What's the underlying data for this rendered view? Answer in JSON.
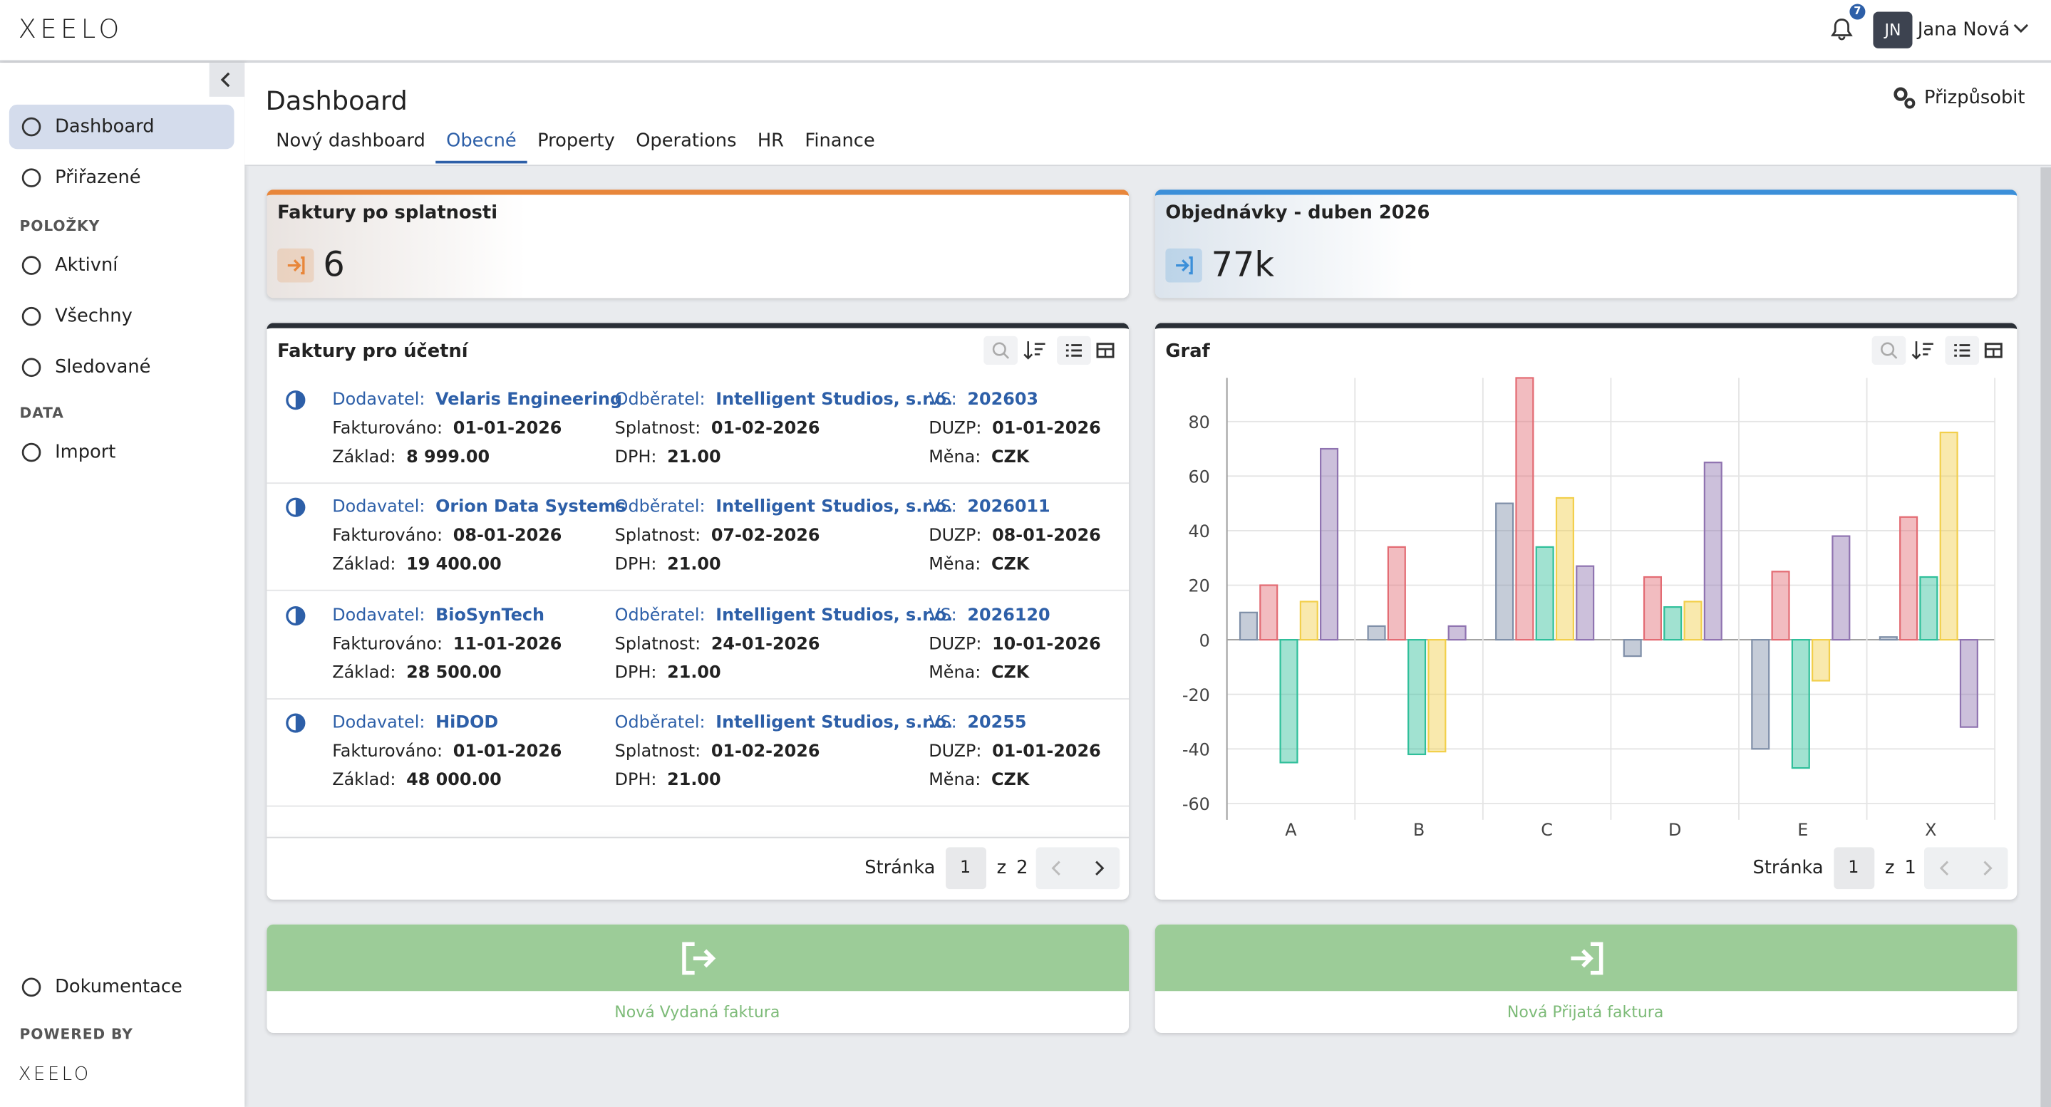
{
  "logo": "XEELO",
  "user": {
    "initials": "JN",
    "name": "Jana Nová",
    "notifications": 7
  },
  "sidebar": {
    "top": [
      "Dashboard",
      "Přiřazené"
    ],
    "active": 0,
    "sections": [
      {
        "title": "POLOŽKY",
        "items": [
          "Aktivní",
          "Všechny",
          "Sledované"
        ]
      },
      {
        "title": "DATA",
        "items": [
          "Import"
        ]
      }
    ],
    "docs": "Dokumentace",
    "powered_by": "POWERED BY"
  },
  "header": {
    "title": "Dashboard",
    "customize": "Přizpůsobit",
    "tabs": [
      "Nový dashboard",
      "Obecné",
      "Property",
      "Operations",
      "HR",
      "Finance"
    ],
    "active_tab": 1
  },
  "kpis": [
    {
      "title": "Faktury po splatnosti",
      "value": 6,
      "color": "#e8863a"
    },
    {
      "title": "Objednávky - duben 2026",
      "value": "77k",
      "color": "#3b8fd9"
    }
  ],
  "invoices": {
    "title": "Faktury pro účetní",
    "labels": {
      "supplier": "Dodavatel:",
      "invoiced": "Fakturováno:",
      "base": "Základ:",
      "customer": "Odběratel:",
      "due": "Splatnost:",
      "vat": "DPH:",
      "vs": "VS:",
      "duzp": "DUZP:",
      "currency": "Měna:"
    },
    "rows": [
      {
        "supplier": "Velaris Engineering",
        "invoiced": "01-01-2026",
        "base": "8 999.00",
        "customer": "Intelligent Studios, s.r.o.",
        "due": "01-02-2026",
        "vat": "21.00",
        "vs": "202603",
        "duzp": "01-01-2026",
        "currency": "CZK"
      },
      {
        "supplier": "Orion Data Systems",
        "invoiced": "08-01-2026",
        "base": "19 400.00",
        "customer": "Intelligent Studios, s.r.o.",
        "due": "07-02-2026",
        "vat": "21.00",
        "vs": "2026011",
        "duzp": "08-01-2026",
        "currency": "CZK"
      },
      {
        "supplier": "BioSynTech",
        "invoiced": "11-01-2026",
        "base": "28 500.00",
        "customer": "Intelligent Studios, s.r.o.",
        "due": "24-01-2026",
        "vat": "21.00",
        "vs": "2026120",
        "duzp": "10-01-2026",
        "currency": "CZK"
      },
      {
        "supplier": "HiDOD",
        "invoiced": "01-01-2026",
        "base": "48 000.00",
        "customer": "Intelligent Studios, s.r.o.",
        "due": "01-02-2026",
        "vat": "21.00",
        "vs": "20255",
        "duzp": "01-01-2026",
        "currency": "CZK"
      }
    ],
    "pager": {
      "label": "Stránka",
      "page": 1,
      "of": "z",
      "total": 2
    }
  },
  "graf": {
    "title": "Graf",
    "type": "bar",
    "categories": [
      "A",
      "B",
      "C",
      "D",
      "E",
      "X"
    ],
    "series": [
      {
        "color": "#7f8fa8",
        "values": [
          10,
          5,
          50,
          -6,
          -40,
          1
        ]
      },
      {
        "color": "#e36b73",
        "values": [
          20,
          34,
          96,
          23,
          25,
          45
        ]
      },
      {
        "color": "#2fbf9a",
        "values": [
          -45,
          -42,
          34,
          12,
          -47,
          23
        ]
      },
      {
        "color": "#f2cf4a",
        "values": [
          14,
          -41,
          52,
          14,
          -15,
          76
        ]
      },
      {
        "color": "#8f73b0",
        "values": [
          70,
          5,
          27,
          65,
          38,
          -32
        ]
      }
    ],
    "ylim": [
      -66,
      96
    ],
    "yticks": [
      -60,
      -40,
      -20,
      0,
      20,
      40,
      60,
      80
    ],
    "grid": true,
    "pager": {
      "label": "Stránka",
      "page": 1,
      "of": "z",
      "total": 1
    }
  },
  "actions": [
    "Nová Vydaná faktura",
    "Nová Přijatá faktura"
  ]
}
